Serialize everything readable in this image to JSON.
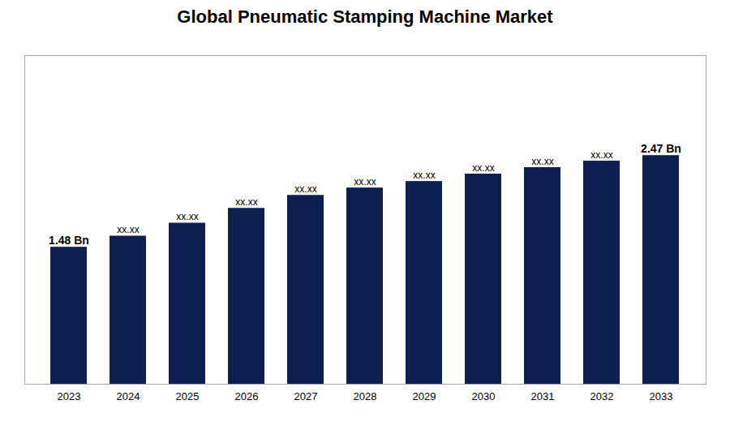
{
  "chart_data": {
    "type": "bar",
    "title": "Global Pneumatic Stamping Machine Market",
    "categories": [
      "2023",
      "2024",
      "2025",
      "2026",
      "2027",
      "2028",
      "2029",
      "2030",
      "2031",
      "2032",
      "2033"
    ],
    "values": [
      1.48,
      1.6,
      1.74,
      1.9,
      2.04,
      2.12,
      2.19,
      2.27,
      2.34,
      2.41,
      2.47
    ],
    "value_labels": [
      "1.48 Bn",
      "xx.xx",
      "xx.xx",
      "xx.xx",
      "xx.xx",
      "xx.xx",
      "xx.xx",
      "xx.xx",
      "xx.xx",
      "xx.xx",
      "2.47 Bn"
    ],
    "color": "#0d1f4e",
    "ylim": [
      0,
      3.55
    ],
    "yticks": [],
    "grid": false,
    "data_labels": true,
    "tick_labels": "x"
  }
}
